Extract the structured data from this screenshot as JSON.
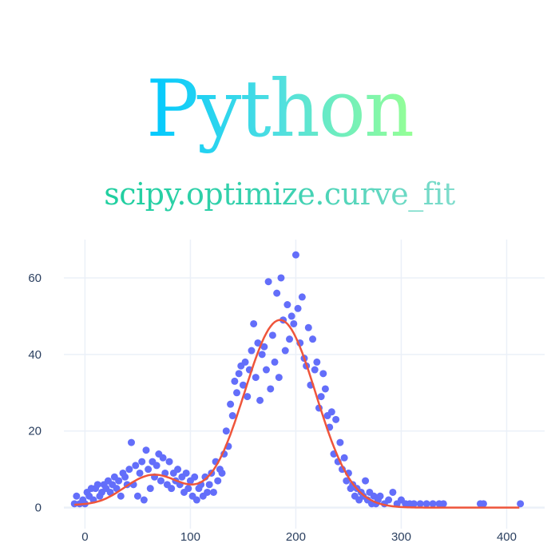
{
  "title": "Python",
  "subtitle": "scipy.optimize.curve_fit",
  "colors": {
    "markers": "#636efa",
    "fit_line": "#ef553b",
    "grid": "#ebf0f8",
    "tick_text": "#2a3f5f"
  },
  "chart_data": {
    "type": "scatter",
    "title": "",
    "xlabel": "",
    "ylabel": "",
    "xlim": [
      -20,
      436
    ],
    "ylim": [
      -5.5,
      70
    ],
    "grid": true,
    "x_ticks": [
      "0",
      "100",
      "200",
      "300",
      "400"
    ],
    "y_ticks": [
      "0",
      "20",
      "40",
      "60"
    ],
    "scatter": {
      "x": [
        -10,
        -8,
        -5,
        -2,
        0,
        2,
        4,
        6,
        8,
        10,
        12,
        14,
        16,
        18,
        20,
        22,
        24,
        26,
        28,
        30,
        32,
        34,
        36,
        38,
        40,
        42,
        44,
        46,
        48,
        50,
        52,
        54,
        56,
        58,
        60,
        62,
        64,
        66,
        68,
        70,
        72,
        74,
        76,
        78,
        80,
        82,
        84,
        86,
        88,
        90,
        92,
        94,
        96,
        98,
        100,
        102,
        104,
        106,
        108,
        110,
        112,
        114,
        116,
        118,
        120,
        122,
        124,
        126,
        128,
        130,
        132,
        134,
        136,
        138,
        140,
        142,
        144,
        146,
        148,
        150,
        152,
        154,
        156,
        158,
        160,
        162,
        164,
        166,
        168,
        170,
        172,
        174,
        176,
        178,
        180,
        182,
        184,
        186,
        188,
        190,
        192,
        194,
        196,
        198,
        200,
        202,
        204,
        206,
        208,
        210,
        212,
        214,
        216,
        218,
        220,
        222,
        224,
        226,
        228,
        230,
        232,
        234,
        236,
        238,
        240,
        242,
        244,
        246,
        248,
        250,
        252,
        254,
        256,
        258,
        260,
        262,
        264,
        266,
        268,
        270,
        272,
        274,
        276,
        278,
        280,
        284,
        288,
        292,
        296,
        300,
        304,
        308,
        312,
        318,
        324,
        330,
        336,
        340,
        375,
        378,
        413
      ],
      "y": [
        1,
        3,
        1,
        2,
        1,
        4,
        3,
        5,
        2,
        5,
        6,
        3,
        4,
        6,
        5,
        7,
        4,
        6,
        8,
        5,
        7,
        3,
        9,
        8,
        6,
        10,
        17,
        6,
        11,
        3,
        9,
        12,
        2,
        15,
        10,
        5,
        12,
        8,
        11,
        14,
        7,
        13,
        9,
        6,
        12,
        5,
        9,
        7,
        10,
        6,
        8,
        4,
        9,
        5,
        7,
        3,
        8,
        2,
        5,
        6,
        3,
        8,
        4,
        6,
        9,
        4,
        12,
        7,
        10,
        9,
        14,
        20,
        16,
        27,
        24,
        33,
        30,
        35,
        37,
        32,
        38,
        29,
        36,
        41,
        48,
        34,
        43,
        28,
        40,
        42,
        36,
        59,
        31,
        45,
        38,
        56,
        34,
        60,
        49,
        41,
        53,
        44,
        50,
        48,
        66,
        52,
        43,
        55,
        39,
        37,
        47,
        32,
        44,
        36,
        38,
        26,
        29,
        35,
        31,
        24,
        21,
        25,
        14,
        23,
        12,
        17,
        10,
        13,
        7,
        9,
        5,
        6,
        3,
        5,
        2,
        4,
        3,
        7,
        2,
        4,
        1,
        3,
        1,
        2,
        3,
        1,
        2,
        4,
        1,
        2,
        1,
        1,
        1,
        1,
        1,
        1,
        1,
        1,
        1,
        1,
        1
      ]
    },
    "fit": {
      "model": "sum of two gaussians",
      "peaks": [
        {
          "amplitude": 49,
          "center": 185,
          "sigma": 34
        },
        {
          "amplitude": 8.5,
          "center": 65,
          "sigma": 28
        }
      ],
      "x_range": [
        -10,
        413
      ]
    }
  }
}
